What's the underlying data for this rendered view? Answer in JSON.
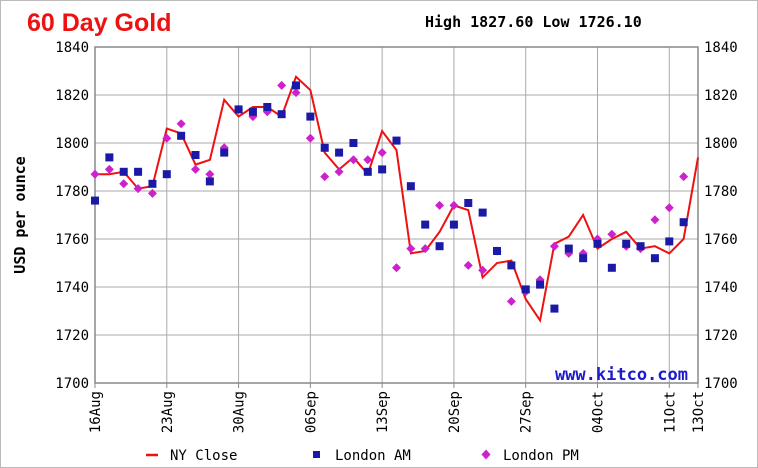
{
  "chart_data": {
    "type": "line",
    "title": "60 Day Gold",
    "high_low_text": "High 1827.60 Low 1726.10",
    "ylabel": "USD per ounce",
    "ylim": [
      1700,
      1840
    ],
    "yticks": [
      "1700",
      "1720",
      "1740",
      "1760",
      "1780",
      "1800",
      "1820",
      "1840"
    ],
    "xtick_labels": [
      "16Aug",
      "23Aug",
      "30Aug",
      "06Sep",
      "13Sep",
      "20Sep",
      "27Sep",
      "04Oct",
      "11Oct",
      "13Oct"
    ],
    "grid": true,
    "watermark": "www.kitco.com",
    "legend_position": "bottom",
    "colors": {
      "ny_close": "#ee1111",
      "london_am": "#1a1aa6",
      "london_pm": "#cc22cc",
      "grid": "#aaaaaa",
      "title": "#ee1111",
      "watermark": "#1b1bcc"
    },
    "series": [
      {
        "name": "NY Close",
        "kind": "line",
        "values": [
          {
            "x": "2021-08-16",
            "y": 1787
          },
          {
            "x": "2021-08-17",
            "y": 1787
          },
          {
            "x": "2021-08-18",
            "y": 1788
          },
          {
            "x": "2021-08-19",
            "y": 1781
          },
          {
            "x": "2021-08-20",
            "y": 1782
          },
          {
            "x": "2021-08-23",
            "y": 1806
          },
          {
            "x": "2021-08-24",
            "y": 1804
          },
          {
            "x": "2021-08-25",
            "y": 1791
          },
          {
            "x": "2021-08-26",
            "y": 1793
          },
          {
            "x": "2021-08-27",
            "y": 1818
          },
          {
            "x": "2021-08-30",
            "y": 1811
          },
          {
            "x": "2021-08-31",
            "y": 1815
          },
          {
            "x": "2021-09-01",
            "y": 1815
          },
          {
            "x": "2021-09-02",
            "y": 1811
          },
          {
            "x": "2021-09-03",
            "y": 1827.6
          },
          {
            "x": "2021-09-06",
            "y": 1822
          },
          {
            "x": "2021-09-07",
            "y": 1796
          },
          {
            "x": "2021-09-08",
            "y": 1789
          },
          {
            "x": "2021-09-09",
            "y": 1794
          },
          {
            "x": "2021-09-10",
            "y": 1787
          },
          {
            "x": "2021-09-13",
            "y": 1805
          },
          {
            "x": "2021-09-14",
            "y": 1797
          },
          {
            "x": "2021-09-15",
            "y": 1754
          },
          {
            "x": "2021-09-16",
            "y": 1755
          },
          {
            "x": "2021-09-17",
            "y": 1763
          },
          {
            "x": "2021-09-20",
            "y": 1774
          },
          {
            "x": "2021-09-21",
            "y": 1772
          },
          {
            "x": "2021-09-22",
            "y": 1744
          },
          {
            "x": "2021-09-23",
            "y": 1750
          },
          {
            "x": "2021-09-24",
            "y": 1751
          },
          {
            "x": "2021-09-27",
            "y": 1735
          },
          {
            "x": "2021-09-28",
            "y": 1726.1
          },
          {
            "x": "2021-09-29",
            "y": 1758
          },
          {
            "x": "2021-09-30",
            "y": 1761
          },
          {
            "x": "2021-10-01",
            "y": 1770
          },
          {
            "x": "2021-10-04",
            "y": 1756
          },
          {
            "x": "2021-10-05",
            "y": 1760
          },
          {
            "x": "2021-10-06",
            "y": 1763
          },
          {
            "x": "2021-10-07",
            "y": 1756
          },
          {
            "x": "2021-10-08",
            "y": 1757
          },
          {
            "x": "2021-10-11",
            "y": 1754
          },
          {
            "x": "2021-10-12",
            "y": 1760
          },
          {
            "x": "2021-10-13",
            "y": 1794
          }
        ]
      },
      {
        "name": "London AM",
        "kind": "marker",
        "values": [
          {
            "x": "2021-08-16",
            "y": 1776
          },
          {
            "x": "2021-08-17",
            "y": 1794
          },
          {
            "x": "2021-08-18",
            "y": 1788
          },
          {
            "x": "2021-08-19",
            "y": 1788
          },
          {
            "x": "2021-08-20",
            "y": 1783
          },
          {
            "x": "2021-08-23",
            "y": 1787
          },
          {
            "x": "2021-08-24",
            "y": 1803
          },
          {
            "x": "2021-08-25",
            "y": 1795
          },
          {
            "x": "2021-08-26",
            "y": 1784
          },
          {
            "x": "2021-08-27",
            "y": 1796
          },
          {
            "x": "2021-08-30",
            "y": 1814
          },
          {
            "x": "2021-08-31",
            "y": 1813
          },
          {
            "x": "2021-09-01",
            "y": 1815
          },
          {
            "x": "2021-09-02",
            "y": 1812
          },
          {
            "x": "2021-09-03",
            "y": 1824
          },
          {
            "x": "2021-09-06",
            "y": 1811
          },
          {
            "x": "2021-09-07",
            "y": 1798
          },
          {
            "x": "2021-09-08",
            "y": 1796
          },
          {
            "x": "2021-09-09",
            "y": 1800
          },
          {
            "x": "2021-09-10",
            "y": 1788
          },
          {
            "x": "2021-09-13",
            "y": 1789
          },
          {
            "x": "2021-09-14",
            "y": 1801
          },
          {
            "x": "2021-09-15",
            "y": 1782
          },
          {
            "x": "2021-09-16",
            "y": 1766
          },
          {
            "x": "2021-09-17",
            "y": 1757
          },
          {
            "x": "2021-09-20",
            "y": 1766
          },
          {
            "x": "2021-09-21",
            "y": 1775
          },
          {
            "x": "2021-09-22",
            "y": 1771
          },
          {
            "x": "2021-09-23",
            "y": 1755
          },
          {
            "x": "2021-09-24",
            "y": 1749
          },
          {
            "x": "2021-09-27",
            "y": 1739
          },
          {
            "x": "2021-09-28",
            "y": 1741
          },
          {
            "x": "2021-09-29",
            "y": 1731
          },
          {
            "x": "2021-09-30",
            "y": 1756
          },
          {
            "x": "2021-10-01",
            "y": 1752
          },
          {
            "x": "2021-10-04",
            "y": 1758
          },
          {
            "x": "2021-10-05",
            "y": 1748
          },
          {
            "x": "2021-10-06",
            "y": 1758
          },
          {
            "x": "2021-10-07",
            "y": 1757
          },
          {
            "x": "2021-10-08",
            "y": 1752
          },
          {
            "x": "2021-10-11",
            "y": 1759
          },
          {
            "x": "2021-10-12",
            "y": 1767
          }
        ]
      },
      {
        "name": "London PM",
        "kind": "marker",
        "values": [
          {
            "x": "2021-08-16",
            "y": 1787
          },
          {
            "x": "2021-08-17",
            "y": 1789
          },
          {
            "x": "2021-08-18",
            "y": 1783
          },
          {
            "x": "2021-08-19",
            "y": 1781
          },
          {
            "x": "2021-08-20",
            "y": 1779
          },
          {
            "x": "2021-08-23",
            "y": 1802
          },
          {
            "x": "2021-08-24",
            "y": 1808
          },
          {
            "x": "2021-08-25",
            "y": 1789
          },
          {
            "x": "2021-08-26",
            "y": 1787
          },
          {
            "x": "2021-08-27",
            "y": 1798
          },
          {
            "x": "2021-08-30",
            "y": 1814
          },
          {
            "x": "2021-08-31",
            "y": 1811
          },
          {
            "x": "2021-09-01",
            "y": 1813
          },
          {
            "x": "2021-09-02",
            "y": 1824
          },
          {
            "x": "2021-09-03",
            "y": 1821
          },
          {
            "x": "2021-09-06",
            "y": 1802
          },
          {
            "x": "2021-09-07",
            "y": 1786
          },
          {
            "x": "2021-09-08",
            "y": 1788
          },
          {
            "x": "2021-09-09",
            "y": 1793
          },
          {
            "x": "2021-09-10",
            "y": 1793
          },
          {
            "x": "2021-09-13",
            "y": 1796
          },
          {
            "x": "2021-09-14",
            "y": 1748
          },
          {
            "x": "2021-09-15",
            "y": 1756
          },
          {
            "x": "2021-09-16",
            "y": 1756
          },
          {
            "x": "2021-09-17",
            "y": 1774
          },
          {
            "x": "2021-09-20",
            "y": 1774
          },
          {
            "x": "2021-09-21",
            "y": 1749
          },
          {
            "x": "2021-09-22",
            "y": 1747
          },
          {
            "x": "2021-09-23",
            "y": 1755
          },
          {
            "x": "2021-09-24",
            "y": 1734
          },
          {
            "x": "2021-09-27",
            "y": 1738
          },
          {
            "x": "2021-09-28",
            "y": 1743
          },
          {
            "x": "2021-09-29",
            "y": 1757
          },
          {
            "x": "2021-09-30",
            "y": 1754
          },
          {
            "x": "2021-10-01",
            "y": 1754
          },
          {
            "x": "2021-10-04",
            "y": 1760
          },
          {
            "x": "2021-10-05",
            "y": 1762
          },
          {
            "x": "2021-10-06",
            "y": 1757
          },
          {
            "x": "2021-10-07",
            "y": 1756
          },
          {
            "x": "2021-10-08",
            "y": 1768
          },
          {
            "x": "2021-10-11",
            "y": 1773
          },
          {
            "x": "2021-10-12",
            "y": 1786
          }
        ]
      }
    ]
  }
}
